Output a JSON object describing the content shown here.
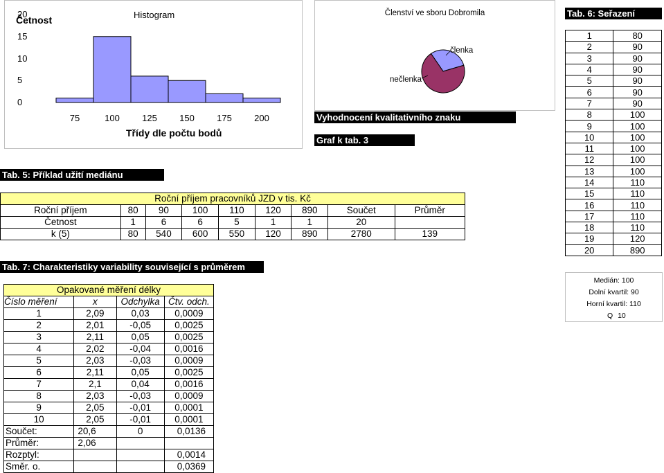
{
  "histogram": {
    "title": "Histogram",
    "ylabel": "Četnost",
    "xlabel": "Třídy dle počtu bodů",
    "ytick_labels": [
      "20",
      "15",
      "10",
      "5",
      "0"
    ],
    "xtick_labels": [
      "75",
      "100",
      "125",
      "150",
      "175",
      "200"
    ],
    "bar_color": "#9999ff"
  },
  "pie": {
    "title": "Členství ve sboru Dobromila",
    "label_members": "členka",
    "label_nonmembers": "nečlenka",
    "color_members": "#9999ff",
    "color_nonmembers": "#993366"
  },
  "chart_data": [
    {
      "type": "bar",
      "title": "Histogram",
      "xlabel": "Třídy dle počtu bodů",
      "ylabel": "Četnost",
      "categories": [
        "75",
        "100",
        "125",
        "150",
        "175",
        "200"
      ],
      "values": [
        1,
        15,
        6,
        5,
        2,
        1
      ],
      "ylim": [
        0,
        20
      ],
      "grid": false
    },
    {
      "type": "pie",
      "title": "Členství ve sboru Dobromila",
      "categories": [
        "členka",
        "nečlenka"
      ],
      "values": [
        30,
        70
      ]
    }
  ],
  "headings": {
    "tab5": "Tab. 5: Příklad užití mediánu",
    "tab7": "Tab. 7: Charakteristiky variability související s průměrem",
    "tab6": "Tab. 6: Seřazení",
    "vyhodnoceni": "Vyhodnocení kvalitativního znaku",
    "graf": "Graf k tab. 3"
  },
  "salary": {
    "title": "Roční příjem pracovníků JZD v tis. Kč",
    "rows": [
      [
        "Roční příjem",
        "80",
        "90",
        "100",
        "110",
        "120",
        "890",
        "Součet",
        "Průměr"
      ],
      [
        "Četnost",
        "1",
        "6",
        "6",
        "5",
        "1",
        "1",
        "20",
        ""
      ],
      [
        "k (5)",
        "80",
        "540",
        "600",
        "550",
        "120",
        "890",
        "2780",
        "139"
      ]
    ]
  },
  "measurement": {
    "title": "Opakované měření délky",
    "headers": [
      "Číslo měření",
      "x",
      "Odchylka",
      "Čtv. odch."
    ],
    "rows": [
      [
        "1",
        "2,09",
        "0,03",
        "0,0009"
      ],
      [
        "2",
        "2,01",
        "-0,05",
        "0,0025"
      ],
      [
        "3",
        "2,11",
        "0,05",
        "0,0025"
      ],
      [
        "4",
        "2,02",
        "-0,04",
        "0,0016"
      ],
      [
        "5",
        "2,03",
        "-0,03",
        "0,0009"
      ],
      [
        "6",
        "2,11",
        "0,05",
        "0,0025"
      ],
      [
        "7",
        "2,1",
        "0,04",
        "0,0016"
      ],
      [
        "8",
        "2,03",
        "-0,03",
        "0,0009"
      ],
      [
        "9",
        "2,05",
        "-0,01",
        "0,0001"
      ],
      [
        "10",
        "2,05",
        "-0,01",
        "0,0001"
      ]
    ],
    "summary": [
      [
        "Součet:",
        "20,6",
        "0",
        "0,0136"
      ],
      [
        "Průměr:",
        "2,06",
        "",
        ""
      ],
      [
        "Rozptyl:",
        "",
        "",
        "0,0014"
      ],
      [
        "Směr. o.",
        "",
        "",
        "0,0369"
      ]
    ]
  },
  "sorted": {
    "rows": [
      [
        "1",
        "80"
      ],
      [
        "2",
        "90"
      ],
      [
        "3",
        "90"
      ],
      [
        "4",
        "90"
      ],
      [
        "5",
        "90"
      ],
      [
        "6",
        "90"
      ],
      [
        "7",
        "90"
      ],
      [
        "8",
        "100"
      ],
      [
        "9",
        "100"
      ],
      [
        "10",
        "100"
      ],
      [
        "11",
        "100"
      ],
      [
        "12",
        "100"
      ],
      [
        "13",
        "100"
      ],
      [
        "14",
        "110"
      ],
      [
        "15",
        "110"
      ],
      [
        "16",
        "110"
      ],
      [
        "17",
        "110"
      ],
      [
        "18",
        "110"
      ],
      [
        "19",
        "120"
      ],
      [
        "20",
        "890"
      ]
    ]
  },
  "stats": {
    "median_label": "Medián:",
    "median_value": "100",
    "lower_label": "Dolní kvartil:",
    "lower_value": "90",
    "upper_label": "Horní kvartil:",
    "upper_value": "110",
    "q_label": "Q",
    "q_value": "10"
  }
}
